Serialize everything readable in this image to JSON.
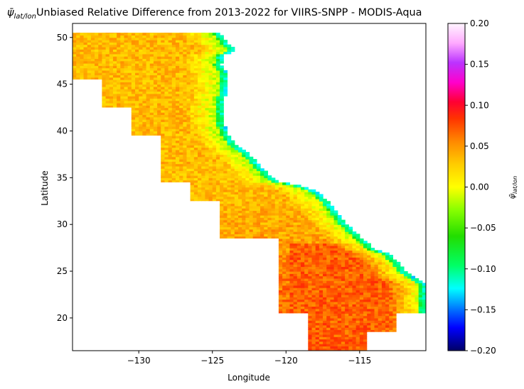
{
  "chart_data": {
    "type": "heatmap",
    "title": "Unbiased Relative Difference from 2013-2022 for VIIRS-SNPP - MODIS-Aqua",
    "title_symbol": "ψ̄",
    "title_symbol_sub": "lat/lon",
    "xlabel": "Longitude",
    "ylabel": "Latitude",
    "xlim": [
      -134.5,
      -110.5
    ],
    "ylim": [
      16.5,
      51.5
    ],
    "xticks": [
      -130,
      -125,
      -120,
      -115
    ],
    "yticks": [
      20,
      25,
      30,
      35,
      40,
      45,
      50
    ],
    "colorbar": {
      "label_symbol": "ψ̄",
      "label_sub": "lat/lon",
      "min": -0.2,
      "max": 0.2,
      "ticks": [
        -0.2,
        -0.15,
        -0.1,
        -0.05,
        0.0,
        0.05,
        0.1,
        0.15,
        0.2
      ],
      "tick_labels": [
        "−0.20",
        "−0.15",
        "−0.10",
        "−0.05",
        "0.00",
        "0.05",
        "0.10",
        "0.15",
        "0.20"
      ],
      "colormap": "gist_ncar-like",
      "stops": [
        [
          0.0,
          "#000066"
        ],
        [
          0.07,
          "#0000ff"
        ],
        [
          0.12,
          "#0066ff"
        ],
        [
          0.19,
          "#00ffff"
        ],
        [
          0.26,
          "#00ff66"
        ],
        [
          0.35,
          "#22dd00"
        ],
        [
          0.43,
          "#88ff00"
        ],
        [
          0.5,
          "#ffff00"
        ],
        [
          0.57,
          "#ffcc00"
        ],
        [
          0.64,
          "#ff8800"
        ],
        [
          0.71,
          "#ff3300"
        ],
        [
          0.76,
          "#ff0033"
        ],
        [
          0.82,
          "#ff00cc"
        ],
        [
          0.88,
          "#bb33ff"
        ],
        [
          0.94,
          "#ffaaff"
        ],
        [
          1.0,
          "#fff5ff"
        ]
      ]
    },
    "data_extent_blocks": [
      {
        "lon": [
          -134.5,
          -120.5
        ],
        "lat": [
          45.5,
          50.5
        ]
      },
      {
        "lon": [
          -132.5,
          -120.5
        ],
        "lat": [
          42.5,
          45.5
        ]
      },
      {
        "lon": [
          -130.5,
          -120.5
        ],
        "lat": [
          39.5,
          42.5
        ]
      },
      {
        "lon": [
          -128.5,
          -120.5
        ],
        "lat": [
          34.5,
          39.5
        ]
      },
      {
        "lon": [
          -126.5,
          -120.5
        ],
        "lat": [
          32.5,
          34.5
        ]
      },
      {
        "lon": [
          -124.5,
          -120.5
        ],
        "lat": [
          28.5,
          32.5
        ]
      },
      {
        "lon": [
          -120.5,
          -110.5
        ],
        "lat": [
          20.5,
          34.5
        ]
      },
      {
        "lon": [
          -118.5,
          -112.5
        ],
        "lat": [
          18.5,
          20.5
        ]
      },
      {
        "lon": [
          -118.5,
          -114.5
        ],
        "lat": [
          16.5,
          18.5
        ]
      }
    ],
    "coastline": [
      [
        -124.5,
        50.5
      ],
      [
        -124.0,
        49.5
      ],
      [
        -123.5,
        48.7
      ],
      [
        -124.3,
        48.0
      ],
      [
        -124.4,
        47.0
      ],
      [
        -124.0,
        46.2
      ],
      [
        -124.0,
        45.0
      ],
      [
        -124.1,
        44.0
      ],
      [
        -124.3,
        43.0
      ],
      [
        -124.3,
        42.0
      ],
      [
        -124.2,
        41.2
      ],
      [
        -124.1,
        40.3
      ],
      [
        -123.7,
        39.0
      ],
      [
        -123.0,
        38.0
      ],
      [
        -122.5,
        37.5
      ],
      [
        -122.0,
        36.7
      ],
      [
        -121.5,
        35.8
      ],
      [
        -120.8,
        35.0
      ],
      [
        -120.5,
        34.5
      ],
      [
        -119.3,
        34.3
      ],
      [
        -118.3,
        33.8
      ],
      [
        -117.5,
        33.0
      ],
      [
        -117.1,
        32.4
      ],
      [
        -116.6,
        31.5
      ],
      [
        -116.2,
        30.5
      ],
      [
        -115.5,
        29.5
      ],
      [
        -114.6,
        28.2
      ],
      [
        -114.1,
        27.5
      ],
      [
        -113.0,
        26.8
      ],
      [
        -112.3,
        26.0
      ],
      [
        -112.0,
        25.0
      ],
      [
        -111.4,
        24.4
      ],
      [
        -110.5,
        23.6
      ]
    ],
    "field_description_by_region": {
      "north_offshore": 0.035,
      "central_offshore": 0.03,
      "nearshore_band": -0.05,
      "coastal_edge": -0.12,
      "south_offshore": 0.075
    }
  }
}
